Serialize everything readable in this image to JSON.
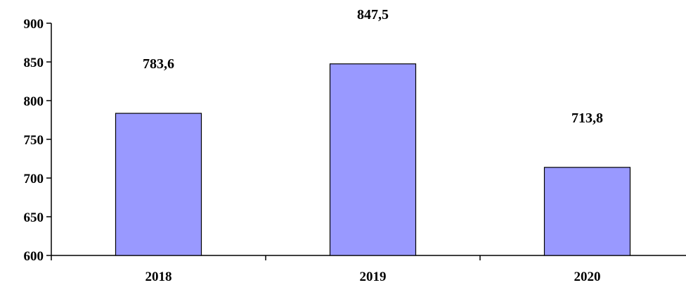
{
  "chart_data": {
    "type": "bar",
    "categories": [
      "2018",
      "2019",
      "2020"
    ],
    "values": [
      783.6,
      847.5,
      713.8
    ],
    "value_labels": [
      "783,6",
      "847,5",
      "713,8"
    ],
    "title": "",
    "xlabel": "",
    "ylabel": "",
    "ylim": [
      600,
      900
    ],
    "y_ticks": [
      900,
      850,
      800,
      750,
      700,
      650,
      600
    ],
    "grid": false,
    "legend": "none",
    "bar_color": "#9999ff",
    "bar_edge_color": "#000000"
  }
}
